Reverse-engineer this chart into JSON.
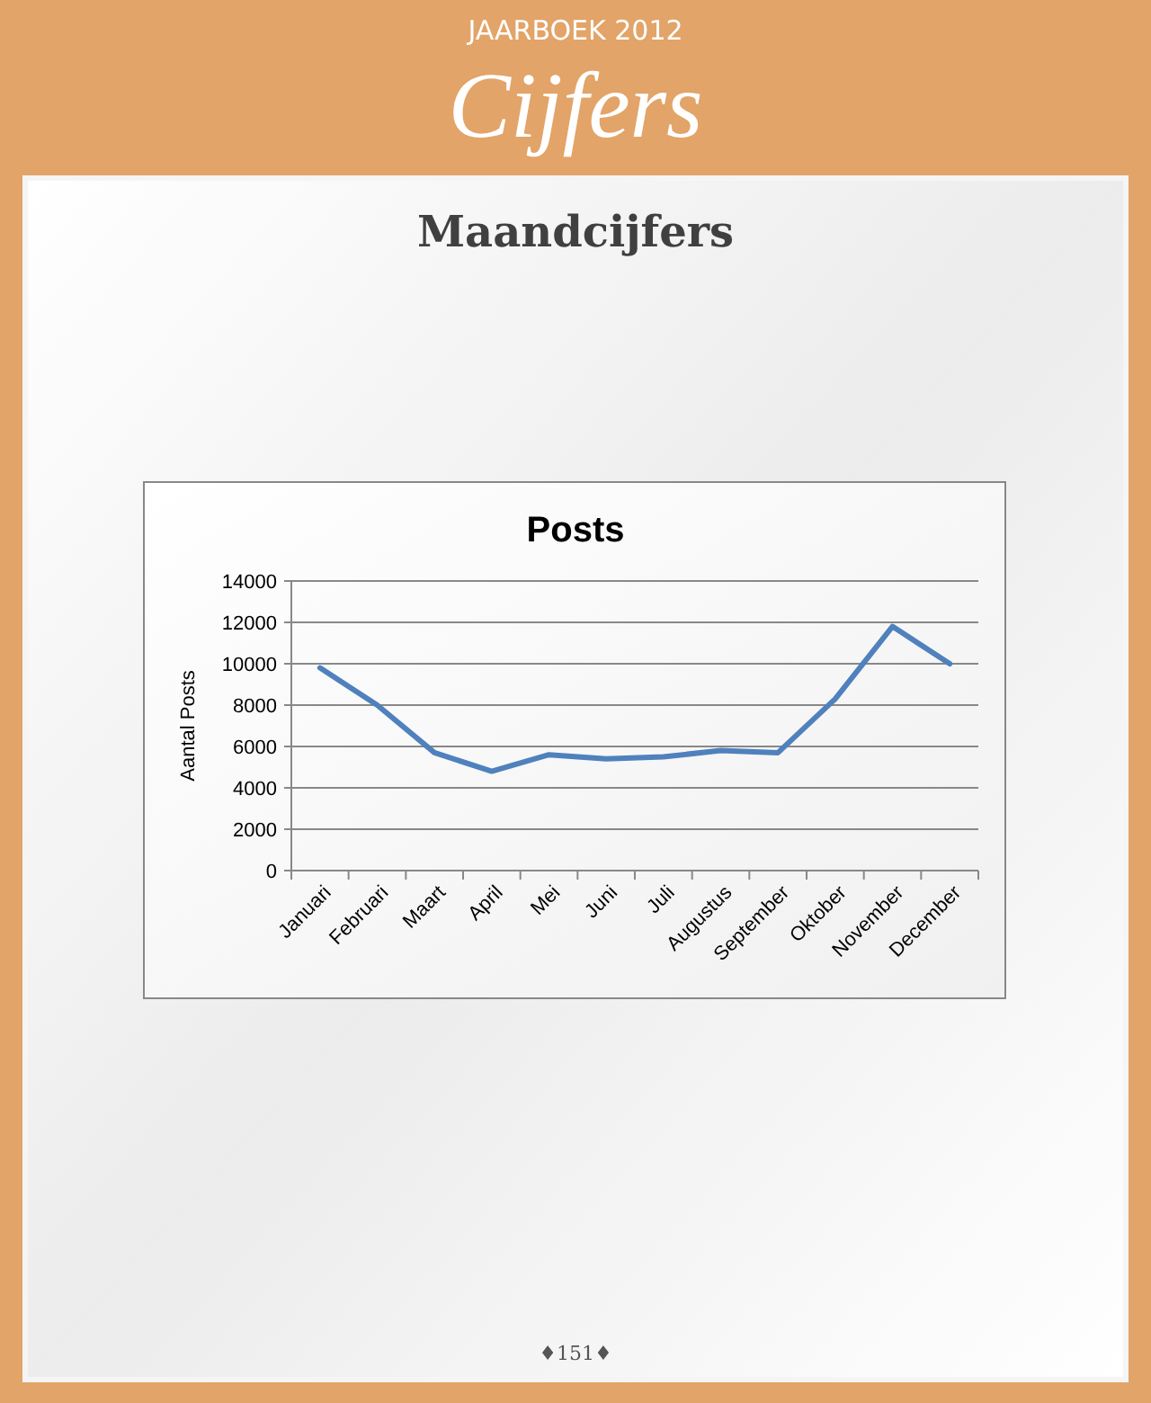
{
  "chart_data": {
    "type": "line",
    "title": "Posts",
    "ylabel": "Aantal Posts",
    "annotations": [
      "JAARBOEK 2012",
      "Cijfers",
      "Maandcijfers",
      "♦151♦"
    ],
    "categories": [
      "Januari",
      "Februari",
      "Maart",
      "April",
      "Mei",
      "Juni",
      "Juli",
      "Augustus",
      "September",
      "Oktober",
      "November",
      "December"
    ],
    "series": [
      {
        "color": "#4f81bd",
        "values": [
          9800,
          8000,
          5700,
          4800,
          5600,
          5400,
          5500,
          5800,
          5700,
          8300,
          11800,
          10000
        ]
      }
    ],
    "ylim": [
      0,
      14000
    ],
    "yticks": [
      0,
      2000,
      4000,
      6000,
      8000,
      10000,
      12000,
      14000
    ],
    "grid": "y",
    "marker": "none",
    "line_style": "solid"
  }
}
